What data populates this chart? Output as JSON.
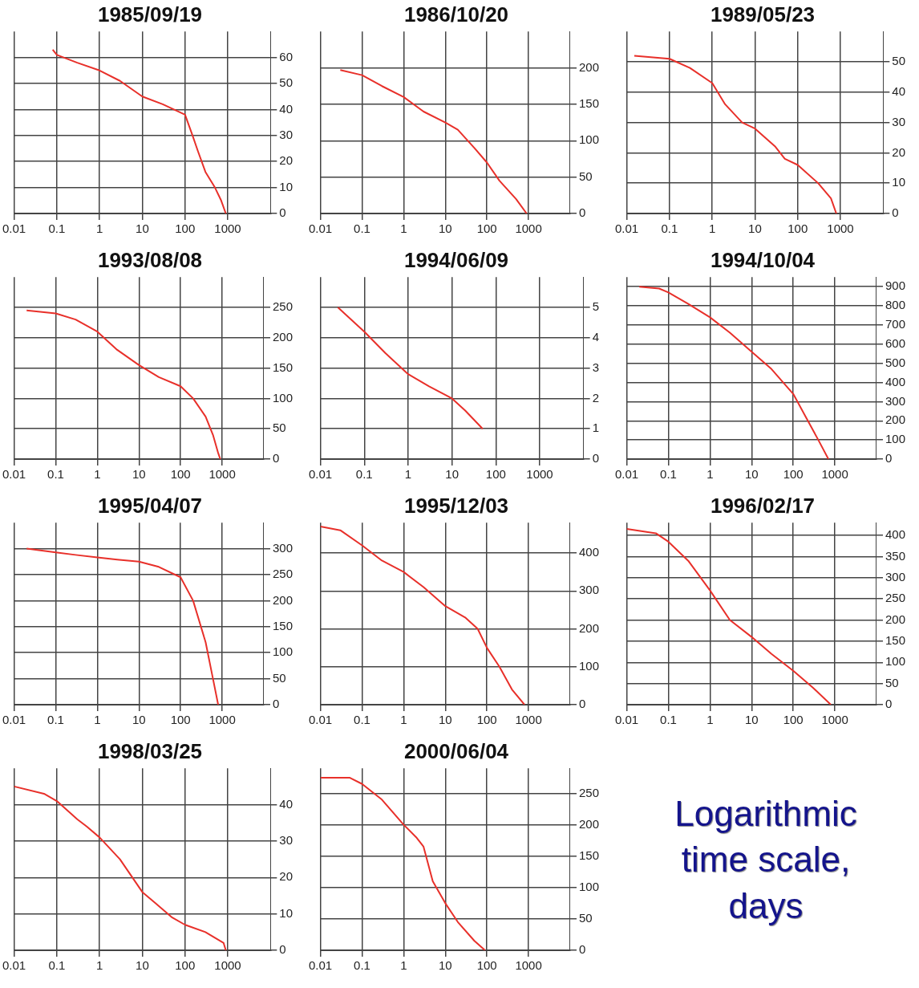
{
  "chart_data": [
    {
      "type": "line",
      "title": "1985/09/19",
      "log": "x",
      "grid": true,
      "legend": false,
      "xlim": [
        0.01,
        10000
      ],
      "xticks": [
        0.01,
        0.1,
        1,
        10,
        100,
        1000
      ],
      "y2lim": [
        0,
        70
      ],
      "y2ticks": [
        0,
        10,
        20,
        30,
        40,
        50,
        60
      ],
      "x": [
        0.08,
        0.1,
        0.3,
        1,
        3,
        10,
        30,
        100,
        150,
        200,
        300,
        500,
        700,
        900
      ],
      "series": [
        {
          "color": "#e8302a",
          "axis": "y2",
          "values": [
            63,
            61,
            58,
            55,
            51,
            45,
            42,
            38,
            30,
            24,
            16,
            10,
            5,
            0
          ]
        }
      ]
    },
    {
      "type": "line",
      "title": "1986/10/20",
      "log": "x",
      "grid": true,
      "legend": false,
      "xlim": [
        0.01,
        10000
      ],
      "xticks": [
        0.01,
        0.1,
        1,
        10,
        100,
        1000
      ],
      "y2lim": [
        0,
        250
      ],
      "y2ticks": [
        0,
        50,
        100,
        150,
        200
      ],
      "x": [
        0.03,
        0.1,
        0.3,
        1,
        3,
        10,
        20,
        50,
        100,
        200,
        500,
        900
      ],
      "series": [
        {
          "color": "#e8302a",
          "axis": "y2",
          "values": [
            197,
            190,
            175,
            160,
            140,
            125,
            115,
            90,
            70,
            45,
            20,
            0
          ]
        }
      ]
    },
    {
      "type": "line",
      "title": "1989/05/23",
      "log": "x",
      "grid": true,
      "legend": false,
      "xlim": [
        0.01,
        10000
      ],
      "xticks": [
        0.01,
        0.1,
        1,
        10,
        100,
        1000
      ],
      "y2lim": [
        0,
        60
      ],
      "y2ticks": [
        0,
        10,
        20,
        30,
        40,
        50
      ],
      "x": [
        0.015,
        0.1,
        0.3,
        1,
        2,
        5,
        10,
        30,
        50,
        100,
        300,
        600,
        800
      ],
      "series": [
        {
          "color": "#e8302a",
          "axis": "y2",
          "values": [
            52,
            51,
            48,
            43,
            36,
            30,
            28,
            22,
            18,
            16,
            10,
            5,
            0
          ]
        }
      ]
    },
    {
      "type": "line",
      "title": "1993/08/08",
      "log": "x",
      "grid": true,
      "legend": false,
      "xlim": [
        0.01,
        10000
      ],
      "xticks": [
        0.01,
        0.1,
        1,
        10,
        100,
        1000
      ],
      "y2lim": [
        0,
        300
      ],
      "y2ticks": [
        0,
        50,
        100,
        150,
        200,
        250
      ],
      "x": [
        0.02,
        0.1,
        0.3,
        1,
        3,
        10,
        30,
        100,
        200,
        400,
        600,
        800,
        900
      ],
      "series": [
        {
          "color": "#e8302a",
          "axis": "y2",
          "values": [
            245,
            240,
            230,
            210,
            180,
            155,
            135,
            120,
            100,
            70,
            40,
            10,
            0
          ]
        }
      ]
    },
    {
      "type": "line",
      "title": "1994/06/09",
      "log": "x",
      "grid": true,
      "legend": false,
      "xlim": [
        0.01,
        10000
      ],
      "xticks": [
        0.01,
        0.1,
        1,
        10,
        100,
        1000
      ],
      "y2lim": [
        0,
        6
      ],
      "y2ticks": [
        0,
        1,
        2,
        3,
        4,
        5
      ],
      "x": [
        0.025,
        0.1,
        0.3,
        1,
        3,
        10,
        20,
        50
      ],
      "series": [
        {
          "color": "#e8302a",
          "axis": "y2",
          "values": [
            5,
            4.2,
            3.5,
            2.8,
            2.4,
            2,
            1.6,
            1
          ]
        }
      ]
    },
    {
      "type": "line",
      "title": "1994/10/04",
      "log": "x",
      "grid": true,
      "legend": false,
      "xlim": [
        0.01,
        10000
      ],
      "xticks": [
        0.01,
        0.1,
        1,
        10,
        100,
        1000
      ],
      "y2lim": [
        0,
        950
      ],
      "y2ticks": [
        0,
        100,
        200,
        300,
        400,
        500,
        600,
        700,
        800,
        900
      ],
      "x": [
        0.02,
        0.06,
        0.1,
        0.3,
        1,
        3,
        10,
        30,
        100,
        200,
        400,
        700
      ],
      "series": [
        {
          "color": "#e8302a",
          "axis": "y2",
          "values": [
            900,
            890,
            870,
            810,
            740,
            660,
            560,
            470,
            340,
            220,
            100,
            0
          ]
        }
      ]
    },
    {
      "type": "line",
      "title": "1995/04/07",
      "log": "x",
      "grid": true,
      "legend": false,
      "xlim": [
        0.01,
        10000
      ],
      "xticks": [
        0.01,
        0.1,
        1,
        10,
        100,
        1000
      ],
      "y2lim": [
        0,
        350
      ],
      "y2ticks": [
        0,
        50,
        100,
        150,
        200,
        250,
        300
      ],
      "x": [
        0.02,
        0.1,
        0.3,
        1,
        3,
        10,
        30,
        100,
        200,
        400,
        600,
        800
      ],
      "series": [
        {
          "color": "#e8302a",
          "axis": "y2",
          "values": [
            300,
            293,
            288,
            283,
            279,
            275,
            265,
            245,
            200,
            120,
            50,
            0
          ]
        }
      ]
    },
    {
      "type": "line",
      "title": "1995/12/03",
      "log": "x",
      "grid": true,
      "legend": false,
      "xlim": [
        0.01,
        10000
      ],
      "xticks": [
        0.01,
        0.1,
        1,
        10,
        100,
        1000
      ],
      "y2lim": [
        0,
        480
      ],
      "y2ticks": [
        0,
        100,
        200,
        300,
        400
      ],
      "x": [
        0.01,
        0.03,
        0.1,
        0.3,
        1,
        3,
        10,
        30,
        60,
        100,
        200,
        400,
        800
      ],
      "series": [
        {
          "color": "#e8302a",
          "axis": "y2",
          "values": [
            470,
            460,
            420,
            380,
            350,
            310,
            260,
            230,
            200,
            150,
            100,
            40,
            0
          ]
        }
      ]
    },
    {
      "type": "line",
      "title": "1996/02/17",
      "log": "x",
      "grid": true,
      "legend": false,
      "xlim": [
        0.01,
        10000
      ],
      "xticks": [
        0.01,
        0.1,
        1,
        10,
        100,
        1000
      ],
      "y2lim": [
        0,
        430
      ],
      "y2ticks": [
        0,
        50,
        100,
        150,
        200,
        250,
        300,
        350,
        400
      ],
      "x": [
        0.01,
        0.05,
        0.1,
        0.3,
        1,
        3,
        10,
        30,
        100,
        300,
        800
      ],
      "series": [
        {
          "color": "#e8302a",
          "axis": "y2",
          "values": [
            415,
            405,
            385,
            340,
            270,
            200,
            160,
            120,
            80,
            40,
            0
          ]
        }
      ]
    },
    {
      "type": "line",
      "title": "1998/03/25",
      "log": "x",
      "grid": true,
      "legend": false,
      "xlim": [
        0.01,
        10000
      ],
      "xticks": [
        0.01,
        0.1,
        1,
        10,
        100,
        1000
      ],
      "y2lim": [
        0,
        50
      ],
      "y2ticks": [
        0,
        10,
        20,
        30,
        40
      ],
      "x": [
        0.01,
        0.05,
        0.1,
        0.3,
        0.5,
        1,
        3,
        10,
        20,
        50,
        100,
        300,
        800,
        900
      ],
      "series": [
        {
          "color": "#e8302a",
          "axis": "y2",
          "values": [
            45,
            43,
            41,
            36,
            34,
            31,
            25,
            16,
            13,
            9,
            7,
            5,
            2,
            0
          ]
        }
      ]
    },
    {
      "type": "line",
      "title": "2000/06/04",
      "log": "x",
      "grid": true,
      "legend": false,
      "xlim": [
        0.01,
        10000
      ],
      "xticks": [
        0.01,
        0.1,
        1,
        10,
        100,
        1000
      ],
      "y2lim": [
        0,
        290
      ],
      "y2ticks": [
        0,
        50,
        100,
        150,
        200,
        250
      ],
      "x": [
        0.01,
        0.05,
        0.1,
        0.3,
        1,
        2,
        3,
        5,
        10,
        20,
        50,
        90
      ],
      "series": [
        {
          "color": "#e8302a",
          "axis": "y2",
          "values": [
            275,
            275,
            265,
            240,
            200,
            180,
            165,
            110,
            75,
            45,
            15,
            0
          ]
        }
      ]
    },
    {
      "type": "other",
      "title": "Logarithmic time scale, days"
    }
  ]
}
